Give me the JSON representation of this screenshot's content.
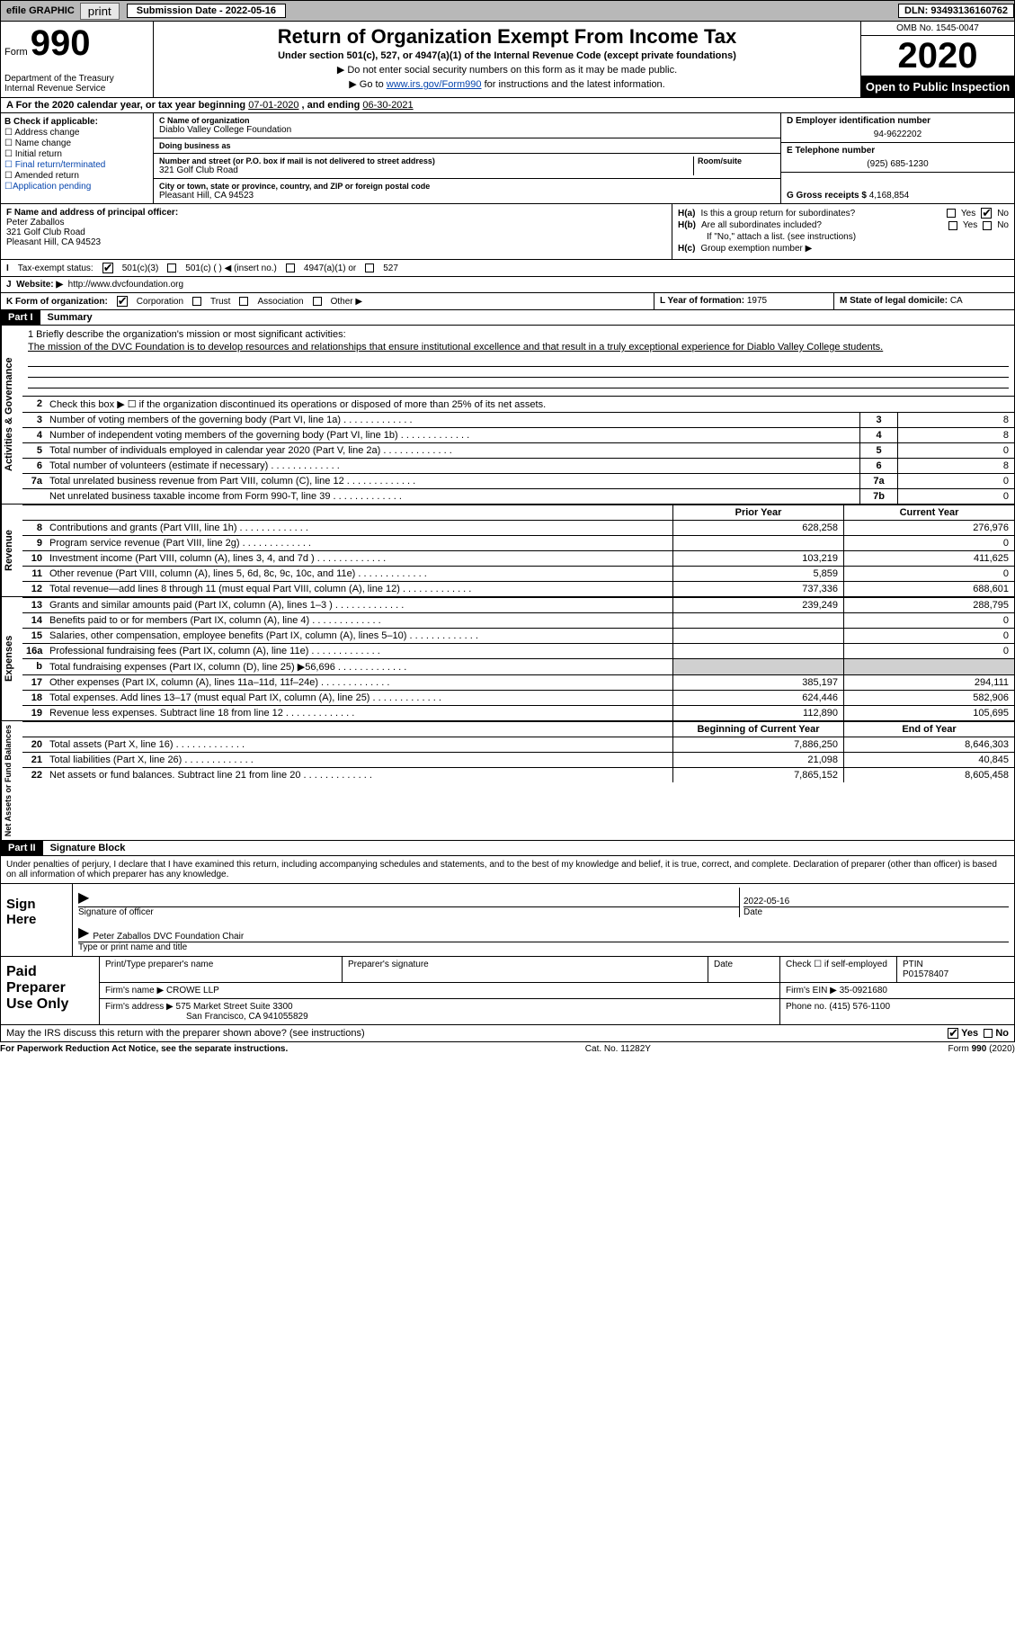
{
  "topbar": {
    "efile": "efile GRAPHIC",
    "print": "print",
    "submission_label": "Submission Date - 2022-05-16",
    "dln": "DLN: 93493136160762"
  },
  "header": {
    "form_word": "Form",
    "form_num": "990",
    "dept": "Department of the Treasury\nInternal Revenue Service",
    "title": "Return of Organization Exempt From Income Tax",
    "under": "Under section 501(c), 527, or 4947(a)(1) of the Internal Revenue Code (except private foundations)",
    "line1": "▶ Do not enter social security numbers on this form as it may be made public.",
    "line2_pre": "▶ Go to ",
    "line2_link": "www.irs.gov/Form990",
    "line2_post": " for instructions and the latest information.",
    "omb": "OMB No. 1545-0047",
    "year": "2020",
    "open": "Open to Public Inspection"
  },
  "period": {
    "text_a": "A For the 2020 calendar year, or tax year beginning ",
    "begin": "07-01-2020",
    "mid": " , and ending ",
    "end": "06-30-2021"
  },
  "colB": {
    "heading": "B Check if applicable:",
    "items": [
      "Address change",
      "Name change",
      "Initial return",
      "Final return/terminated",
      "Amended return",
      "Application pending"
    ]
  },
  "org": {
    "c_label": "C Name of organization",
    "name": "Diablo Valley College Foundation",
    "dba_label": "Doing business as",
    "addr_label": "Number and street (or P.O. box if mail is not delivered to street address)",
    "room_label": "Room/suite",
    "addr": "321 Golf Club Road",
    "city_label": "City or town, state or province, country, and ZIP or foreign postal code",
    "city": "Pleasant Hill, CA  94523"
  },
  "right": {
    "d_label": "D Employer identification number",
    "ein": "94-9622202",
    "e_label": "E Telephone number",
    "phone": "(925) 685-1230",
    "g_label": "G Gross receipts $",
    "gross": "4,168,854"
  },
  "officer": {
    "f_label": "F  Name and address of principal officer:",
    "name": "Peter Zaballos",
    "addr1": "321 Golf Club Road",
    "addr2": "Pleasant Hill, CA  94523",
    "ha": "Is this a group return for subordinates?",
    "hb": "Are all subordinates included?",
    "hnote": "If \"No,\" attach a list. (see instructions)",
    "hc": "Group exemption number ▶",
    "ha_label": "H(a)",
    "hb_label": "H(b)",
    "hc_label": "H(c)",
    "yes": "Yes",
    "no": "No"
  },
  "status": {
    "i_label": "I",
    "label": "Tax-exempt status:",
    "opt1": "501(c)(3)",
    "opt2": "501(c) (  ) ◀ (insert no.)",
    "opt3": "4947(a)(1) or",
    "opt4": "527"
  },
  "website": {
    "j_label": "J",
    "label": "Website: ▶",
    "url": "http://www.dvcfoundation.org"
  },
  "korg": {
    "k_label": "K Form of organization:",
    "opts": [
      "Corporation",
      "Trust",
      "Association",
      "Other ▶"
    ],
    "l_label": "L Year of formation:",
    "l_val": "1975",
    "m_label": "M State of legal domicile:",
    "m_val": "CA"
  },
  "part1": {
    "tag": "Part I",
    "title": "Summary"
  },
  "sections": {
    "gov": "Activities & Governance",
    "rev": "Revenue",
    "exp": "Expenses",
    "net": "Net Assets or Fund Balances"
  },
  "mission": {
    "q": "1  Briefly describe the organization's mission or most significant activities:",
    "a": "The mission of the DVC Foundation is to develop resources and relationships that ensure institutional excellence and that result in a truly exceptional experience for Diablo Valley College students."
  },
  "line2": "Check this box ▶ ☐  if the organization discontinued its operations or disposed of more than 25% of its net assets.",
  "govrows": [
    {
      "n": "3",
      "d": "Number of voting members of the governing body (Part VI, line 1a)",
      "b": "3",
      "v": "8"
    },
    {
      "n": "4",
      "d": "Number of independent voting members of the governing body (Part VI, line 1b)",
      "b": "4",
      "v": "8"
    },
    {
      "n": "5",
      "d": "Total number of individuals employed in calendar year 2020 (Part V, line 2a)",
      "b": "5",
      "v": "0"
    },
    {
      "n": "6",
      "d": "Total number of volunteers (estimate if necessary)",
      "b": "6",
      "v": "8"
    },
    {
      "n": "7a",
      "d": "Total unrelated business revenue from Part VIII, column (C), line 12",
      "b": "7a",
      "v": "0"
    },
    {
      "n": "",
      "d": "Net unrelated business taxable income from Form 990-T, line 39",
      "b": "7b",
      "v": "0"
    }
  ],
  "colheads": {
    "prior": "Prior Year",
    "current": "Current Year",
    "beg": "Beginning of Current Year",
    "end": "End of Year"
  },
  "revrows": [
    {
      "n": "8",
      "d": "Contributions and grants (Part VIII, line 1h)",
      "p": "628,258",
      "c": "276,976"
    },
    {
      "n": "9",
      "d": "Program service revenue (Part VIII, line 2g)",
      "p": "",
      "c": "0"
    },
    {
      "n": "10",
      "d": "Investment income (Part VIII, column (A), lines 3, 4, and 7d )",
      "p": "103,219",
      "c": "411,625"
    },
    {
      "n": "11",
      "d": "Other revenue (Part VIII, column (A), lines 5, 6d, 8c, 9c, 10c, and 11e)",
      "p": "5,859",
      "c": "0"
    },
    {
      "n": "12",
      "d": "Total revenue—add lines 8 through 11 (must equal Part VIII, column (A), line 12)",
      "p": "737,336",
      "c": "688,601"
    }
  ],
  "exprows": [
    {
      "n": "13",
      "d": "Grants and similar amounts paid (Part IX, column (A), lines 1–3 )",
      "p": "239,249",
      "c": "288,795"
    },
    {
      "n": "14",
      "d": "Benefits paid to or for members (Part IX, column (A), line 4)",
      "p": "",
      "c": "0"
    },
    {
      "n": "15",
      "d": "Salaries, other compensation, employee benefits (Part IX, column (A), lines 5–10)",
      "p": "",
      "c": "0"
    },
    {
      "n": "16a",
      "d": "Professional fundraising fees (Part IX, column (A), line 11e)",
      "p": "",
      "c": "0"
    },
    {
      "n": "b",
      "d": "Total fundraising expenses (Part IX, column (D), line 25) ▶56,696",
      "p": "GRAY",
      "c": "GRAY"
    },
    {
      "n": "17",
      "d": "Other expenses (Part IX, column (A), lines 11a–11d, 11f–24e)",
      "p": "385,197",
      "c": "294,111"
    },
    {
      "n": "18",
      "d": "Total expenses. Add lines 13–17 (must equal Part IX, column (A), line 25)",
      "p": "624,446",
      "c": "582,906"
    },
    {
      "n": "19",
      "d": "Revenue less expenses. Subtract line 18 from line 12",
      "p": "112,890",
      "c": "105,695"
    }
  ],
  "netrows": [
    {
      "n": "20",
      "d": "Total assets (Part X, line 16)",
      "p": "7,886,250",
      "c": "8,646,303"
    },
    {
      "n": "21",
      "d": "Total liabilities (Part X, line 26)",
      "p": "21,098",
      "c": "40,845"
    },
    {
      "n": "22",
      "d": "Net assets or fund balances. Subtract line 21 from line 20",
      "p": "7,865,152",
      "c": "8,605,458"
    }
  ],
  "part2": {
    "tag": "Part II",
    "title": "Signature Block"
  },
  "declare": "Under penalties of perjury, I declare that I have examined this return, including accompanying schedules and statements, and to the best of my knowledge and belief, it is true, correct, and complete. Declaration of preparer (other than officer) is based on all information of which preparer has any knowledge.",
  "sign": {
    "label": "Sign Here",
    "sig_of_officer": "Signature of officer",
    "date": "Date",
    "date_val": "2022-05-16",
    "name_title": "Peter Zaballos  DVC Foundation Chair",
    "type_name": "Type or print name and title"
  },
  "paid": {
    "label": "Paid Preparer Use Only",
    "col1": "Print/Type preparer's name",
    "col2": "Preparer's signature",
    "col3": "Date",
    "col4": "Check ☐ if self-employed",
    "col5_l": "PTIN",
    "col5_v": "P01578407",
    "firm_name_l": "Firm's name    ▶",
    "firm_name": "CROWE LLP",
    "firm_ein_l": "Firm's EIN ▶",
    "firm_ein": "35-0921680",
    "firm_addr_l": "Firm's address ▶",
    "firm_addr1": "575 Market Street Suite 3300",
    "firm_addr2": "San Francisco, CA  941055829",
    "phone_l": "Phone no.",
    "phone": "(415) 576-1100"
  },
  "discuss": {
    "q": "May the IRS discuss this return with the preparer shown above? (see instructions)",
    "yes": "Yes",
    "no": "No"
  },
  "footer": {
    "left": "For Paperwork Reduction Act Notice, see the separate instructions.",
    "mid": "Cat. No. 11282Y",
    "right": "Form 990 (2020)"
  }
}
